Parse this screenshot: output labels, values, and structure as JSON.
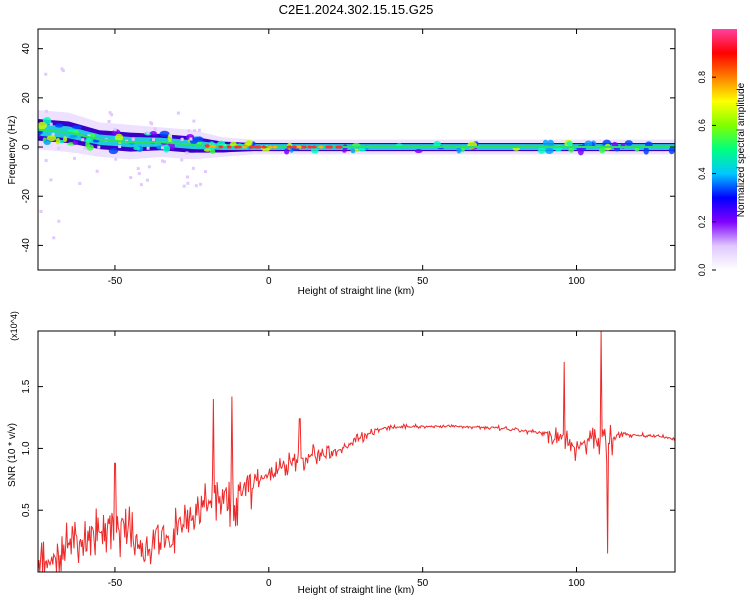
{
  "title": "C2E1.2024.302.15.15.G25",
  "chart_data": [
    {
      "type": "heatmap",
      "xlabel": "Height of straight line (km)",
      "ylabel": "Frequency (Hz)",
      "xlim": [
        -75,
        132
      ],
      "ylim": [
        -50,
        48
      ],
      "x_ticks": [
        -50,
        0,
        50,
        100
      ],
      "y_ticks": [
        -40,
        -20,
        0,
        20,
        40
      ],
      "colorbar": {
        "label": "Normalized spectral amplitude",
        "range": [
          0,
          1
        ],
        "ticks": [
          0.0,
          0.2,
          0.4,
          0.6,
          0.8
        ],
        "tick_labels": [
          "0.0",
          "0.2",
          "0.4",
          "0.6",
          "0.8"
        ],
        "colormap": [
          "#ffffff",
          "#e0c8ff",
          "#8000ff",
          "#0000ff",
          "#00c8ff",
          "#00ff80",
          "#80ff00",
          "#ffff00",
          "#ff8000",
          "#ff0000",
          "#ff40a0"
        ]
      },
      "ridge": {
        "x": [
          -75,
          -65,
          -55,
          -45,
          -35,
          -25,
          -15,
          -5,
          0,
          10,
          20,
          30,
          50,
          70,
          90,
          100,
          110,
          120,
          132
        ],
        "center_freq": [
          7,
          6,
          3,
          2,
          2,
          1,
          0,
          0,
          0,
          0,
          0,
          0,
          0,
          0,
          0,
          0,
          0,
          0,
          0
        ],
        "spread": [
          8,
          8,
          7,
          7,
          6,
          6,
          4,
          3,
          3,
          3,
          3,
          3,
          3,
          3,
          3,
          3,
          3,
          3,
          3
        ]
      }
    },
    {
      "type": "line",
      "xlabel": "Height of straight line (km)",
      "ylabel": "SNR (10 * v/v)",
      "y_multiplier": "(x10^4)",
      "xlim": [
        -75,
        132
      ],
      "ylim": [
        0,
        1.95
      ],
      "x_ticks": [
        -50,
        0,
        50,
        100
      ],
      "y_ticks": [
        0.5,
        1.0,
        1.5
      ],
      "y_tick_labels": [
        "0.5",
        "1.0",
        "1.5"
      ],
      "line_color": "#ee2a2a",
      "series": [
        {
          "x": [
            -75,
            -70,
            -65,
            -60,
            -55,
            -50,
            -45,
            -40,
            -35,
            -30,
            -25,
            -20,
            -15,
            -10,
            -5,
            0,
            5,
            10,
            15,
            20,
            25,
            30,
            35,
            40,
            50,
            60,
            70,
            80,
            90,
            95,
            100,
            105,
            110,
            115,
            120,
            125,
            132
          ],
          "y": [
            0.05,
            0.12,
            0.2,
            0.25,
            0.33,
            0.4,
            0.3,
            0.18,
            0.28,
            0.35,
            0.42,
            0.55,
            0.65,
            0.62,
            0.72,
            0.78,
            0.85,
            0.9,
            0.95,
            0.95,
            1.02,
            1.1,
            1.15,
            1.17,
            1.18,
            1.18,
            1.17,
            1.15,
            1.12,
            1.1,
            1.0,
            1.1,
            1.05,
            1.12,
            1.1,
            1.1,
            1.08
          ]
        }
      ],
      "peaks": [
        {
          "x": -50,
          "y": 0.88
        },
        {
          "x": -18,
          "y": 1.4
        },
        {
          "x": -12,
          "y": 1.42
        },
        {
          "x": 10,
          "y": 1.24
        },
        {
          "x": 96,
          "y": 1.7
        },
        {
          "x": 108,
          "y": 1.95
        },
        {
          "x": 110,
          "y": 0.15
        }
      ]
    }
  ]
}
